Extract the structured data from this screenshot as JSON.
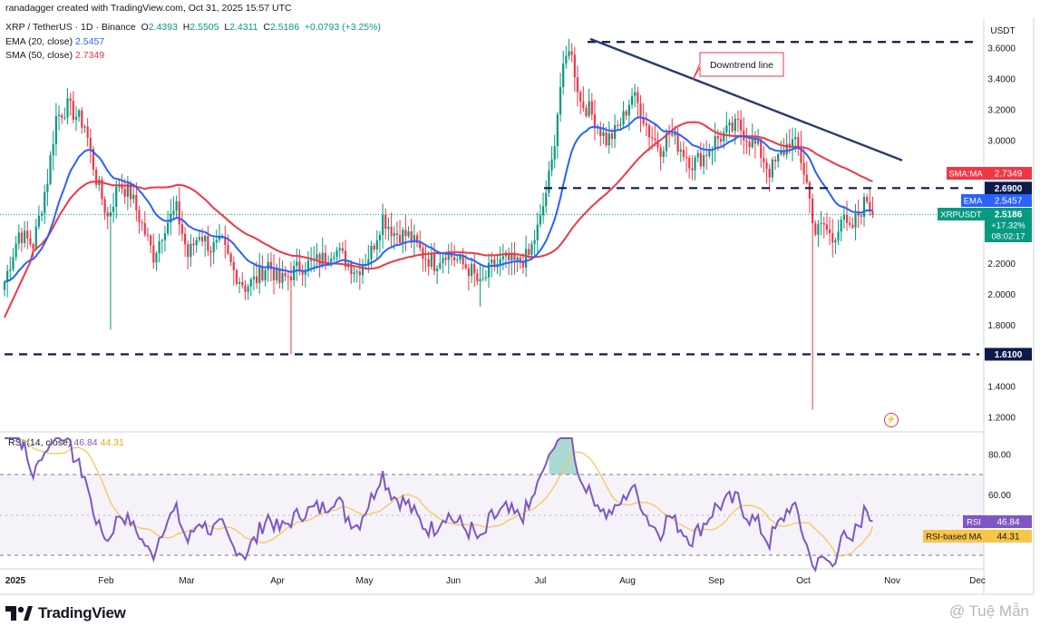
{
  "header": {
    "top": "ranadagger created with TradingView.com, Oct 31, 2025 15:57 UTC",
    "symbol": "XRP / TetherUS · 1D · Binance",
    "o_label": "O",
    "o_value": "2.4393",
    "h_label": "H",
    "h_value": "2.5505",
    "l_label": "L",
    "l_value": "2.4311",
    "c_label": "C",
    "c_value": "2.5186",
    "change": "+0.0793 (+3.25%)",
    "ema_label": "EMA (20, close)",
    "ema_value": "2.5457",
    "sma_label": "SMA (50, close)",
    "sma_value": "2.7349"
  },
  "rsi_header": {
    "label": "RSI (14, close)",
    "rsi_value": "46.84",
    "ma_value": "44.31"
  },
  "footer": {
    "brand": "TradingView",
    "watermark": "@ Tuệ Mẫn"
  },
  "colors": {
    "up": "#089981",
    "down": "#f23645",
    "ema": "#2962ff",
    "sma": "#f23645",
    "rsi": "#7e57c2",
    "rsi_ma": "#f7c548",
    "trend": "#2a3a6b"
  },
  "chart_data": [
    {
      "type": "candlestick",
      "title": "XRP / TetherUS · 1D · Binance",
      "currency": "USDT",
      "y_ticks": [
        "3.6000",
        "3.4000",
        "3.2000",
        "3.0000",
        "2.8000",
        "2.6000",
        "2.4000",
        "2.2000",
        "2.0000",
        "1.8000",
        "1.6000",
        "1.4000",
        "1.2000"
      ],
      "ylim": [
        1.16,
        3.69
      ],
      "x_ticks": [
        "2025",
        "Feb",
        "Mar",
        "Apr",
        "May",
        "Jun",
        "Jul",
        "Aug",
        "Sep",
        "Oct",
        "Nov",
        "Dec"
      ],
      "horizontal_levels": [
        {
          "value": 3.64,
          "label": ""
        },
        {
          "value": 2.69,
          "label": "2.6900"
        },
        {
          "value": 1.61,
          "label": "1.6100"
        }
      ],
      "trendline": {
        "label": "Downtrend line",
        "start": {
          "date": "2025-07-18",
          "value": 3.66
        },
        "end": {
          "date": "2025-10-31",
          "value": 2.87
        }
      },
      "price_labels": [
        {
          "name": "SMA:MA",
          "value": "2.7349"
        },
        {
          "name": "EMA",
          "value": "2.5457"
        },
        {
          "name": "XRPUSDT",
          "value": "2.5186",
          "change": "+17.32%",
          "countdown": "08:02:17"
        }
      ],
      "series": [
        {
          "name": "XRPUSDT",
          "kind": "close",
          "key_points": [
            [
              0,
              2.08
            ],
            [
              5,
              2.4
            ],
            [
              10,
              2.32
            ],
            [
              15,
              2.75
            ],
            [
              18,
              3.15
            ],
            [
              22,
              3.22
            ],
            [
              28,
              3.1
            ],
            [
              32,
              2.75
            ],
            [
              36,
              2.5
            ],
            [
              40,
              2.72
            ],
            [
              44,
              2.65
            ],
            [
              48,
              2.45
            ],
            [
              52,
              2.25
            ],
            [
              56,
              2.45
            ],
            [
              60,
              2.55
            ],
            [
              64,
              2.25
            ],
            [
              68,
              2.4
            ],
            [
              72,
              2.3
            ],
            [
              76,
              2.32
            ],
            [
              80,
              2.15
            ],
            [
              84,
              2.05
            ],
            [
              88,
              2.1
            ],
            [
              92,
              2.2
            ],
            [
              96,
              2.08
            ],
            [
              99,
              2.12
            ],
            [
              103,
              2.18
            ],
            [
              107,
              2.2
            ],
            [
              111,
              2.23
            ],
            [
              115,
              2.3
            ],
            [
              119,
              2.22
            ],
            [
              123,
              2.15
            ],
            [
              128,
              2.28
            ],
            [
              132,
              2.5
            ],
            [
              136,
              2.4
            ],
            [
              141,
              2.38
            ],
            [
              146,
              2.26
            ],
            [
              150,
              2.2
            ],
            [
              154,
              2.28
            ],
            [
              158,
              2.22
            ],
            [
              163,
              2.15
            ],
            [
              166,
              2.05
            ],
            [
              170,
              2.18
            ],
            [
              175,
              2.22
            ],
            [
              179,
              2.2
            ],
            [
              183,
              2.25
            ],
            [
              187,
              2.48
            ],
            [
              191,
              2.85
            ],
            [
              194,
              3.35
            ],
            [
              197,
              3.62
            ],
            [
              199,
              3.45
            ],
            [
              201,
              3.25
            ],
            [
              204,
              3.2
            ],
            [
              207,
              3.1
            ],
            [
              210,
              3.0
            ],
            [
              213,
              3.05
            ],
            [
              216,
              3.15
            ],
            [
              219,
              3.3
            ],
            [
              222,
              3.2
            ],
            [
              225,
              3.05
            ],
            [
              229,
              2.95
            ],
            [
              232,
              3.05
            ],
            [
              236,
              2.95
            ],
            [
              240,
              2.85
            ],
            [
              244,
              2.9
            ],
            [
              248,
              3.0
            ],
            [
              252,
              3.05
            ],
            [
              256,
              3.1
            ],
            [
              260,
              3.0
            ],
            [
              263,
              2.95
            ],
            [
              267,
              2.8
            ],
            [
              271,
              2.9
            ],
            [
              274,
              3.0
            ],
            [
              277,
              2.95
            ],
            [
              280,
              2.72
            ],
            [
              283,
              2.4
            ],
            [
              286,
              2.45
            ],
            [
              289,
              2.35
            ],
            [
              292,
              2.5
            ],
            [
              295,
              2.4
            ],
            [
              298,
              2.52
            ],
            [
              301,
              2.62
            ],
            [
              303,
              2.52
            ]
          ]
        },
        {
          "name": "EMA (20, close)",
          "kind": "line",
          "last": 2.5457
        },
        {
          "name": "SMA (50, close)",
          "kind": "line",
          "last": 2.7349
        }
      ]
    },
    {
      "type": "line",
      "title": "RSI (14, close)",
      "y_ticks": [
        "80.00",
        "60.00"
      ],
      "bands": [
        70,
        30
      ],
      "series": [
        {
          "name": "RSI",
          "last": "46.84"
        },
        {
          "name": "RSI-based MA",
          "last": "44.31"
        }
      ]
    }
  ]
}
